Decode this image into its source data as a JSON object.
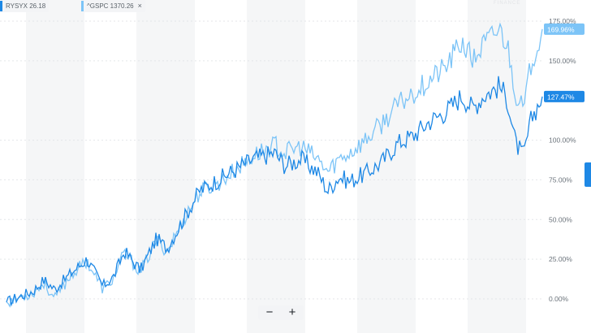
{
  "legend": {
    "items": [
      {
        "symbol": "RYSYX",
        "value": "26.18",
        "color": "#1e88e5"
      },
      {
        "symbol": "^GSPC",
        "value": "1370.26",
        "color": "#7cc4f7",
        "close_icon": "×"
      }
    ]
  },
  "watermark": "FINANCE",
  "zoom": {
    "minus_label": "−",
    "plus_label": "+"
  },
  "chart_data": {
    "type": "line",
    "ylim": [
      -10,
      177
    ],
    "y_ticks": [
      "0.00%",
      "25.00%",
      "50.00%",
      "75.00%",
      "100.00%",
      "150.00%",
      "175.00%"
    ],
    "y_tick_values": [
      0,
      25,
      50,
      75,
      100,
      150,
      175
    ],
    "x": [
      0,
      0.05,
      0.07,
      0.09,
      0.12,
      0.15,
      0.18,
      0.2,
      0.22,
      0.25,
      0.28,
      0.3,
      0.33,
      0.36,
      0.4,
      0.43,
      0.46,
      0.5,
      0.52,
      0.55,
      0.58,
      0.6,
      0.62,
      0.64,
      0.67,
      0.7,
      0.73,
      0.76,
      0.79,
      0.82,
      0.85,
      0.87,
      0.89,
      0.92,
      0.935,
      0.95,
      0.965,
      0.98,
      1
    ],
    "series": [
      {
        "name": "RYSYX",
        "color": "#1e88e5",
        "values": [
          -2,
          5,
          12,
          6,
          16,
          25,
          8,
          14,
          30,
          18,
          38,
          32,
          50,
          68,
          76,
          82,
          88,
          92,
          84,
          88,
          80,
          68,
          77,
          74,
          79,
          86,
          98,
          103,
          112,
          118,
          128,
          120,
          128,
          134,
          126,
          98,
          90,
          114,
          127.47
        ],
        "last_label": "127.47%"
      },
      {
        "name": "^GSPC",
        "color": "#7cc4f7",
        "values": [
          -2,
          4,
          10,
          0,
          15,
          24,
          6,
          13,
          29,
          17,
          37,
          30,
          50,
          67,
          74,
          82,
          90,
          97,
          92,
          96,
          88,
          80,
          88,
          92,
          100,
          110,
          122,
          130,
          138,
          146,
          162,
          150,
          160,
          170,
          160,
          130,
          118,
          150,
          169.96
        ],
        "last_label": "169.96%"
      }
    ]
  }
}
